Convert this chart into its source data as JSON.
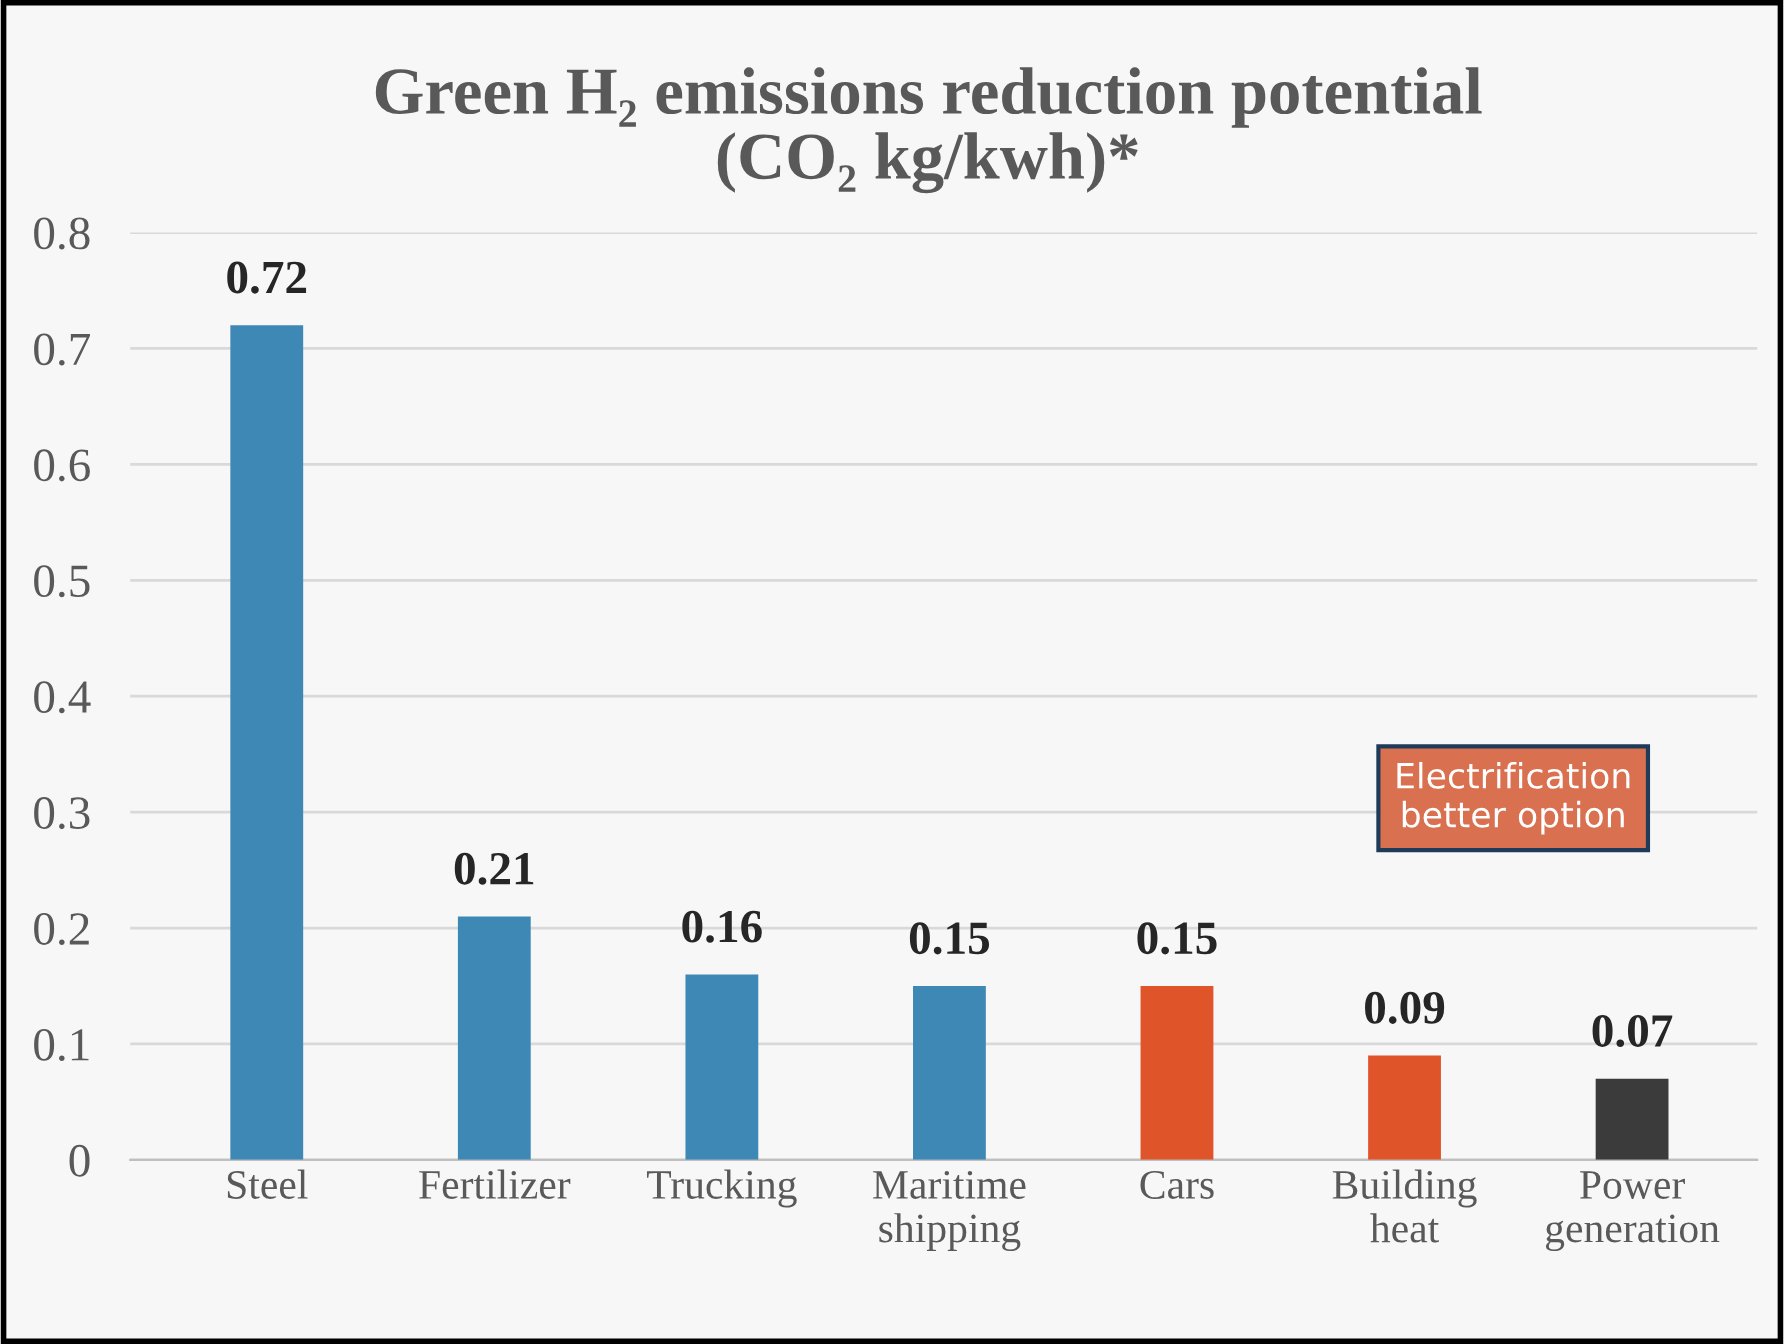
{
  "chart_data": {
    "type": "bar",
    "title": "Green H₂ emissions reduction potential\n(CO₂ kg/kwh)*",
    "categories": [
      "Steel",
      "Fertilizer",
      "Trucking",
      "Maritime\nshipping",
      "Cars",
      "Building\nheat",
      "Power\ngeneration"
    ],
    "values": [
      0.72,
      0.21,
      0.16,
      0.15,
      0.15,
      0.09,
      0.07
    ],
    "colors": [
      "#3e88b6",
      "#3e88b6",
      "#3e88b6",
      "#3e88b6",
      "#e0542a",
      "#e0542a",
      "#3b3b3b"
    ],
    "ylim": [
      0,
      0.8
    ],
    "yticks": [
      0,
      0.1,
      0.2,
      0.3,
      0.4,
      0.5,
      0.6,
      0.7,
      0.8
    ],
    "grid": "y",
    "data_labels": true,
    "annotations": [
      "Electrification\nbetter option"
    ]
  }
}
